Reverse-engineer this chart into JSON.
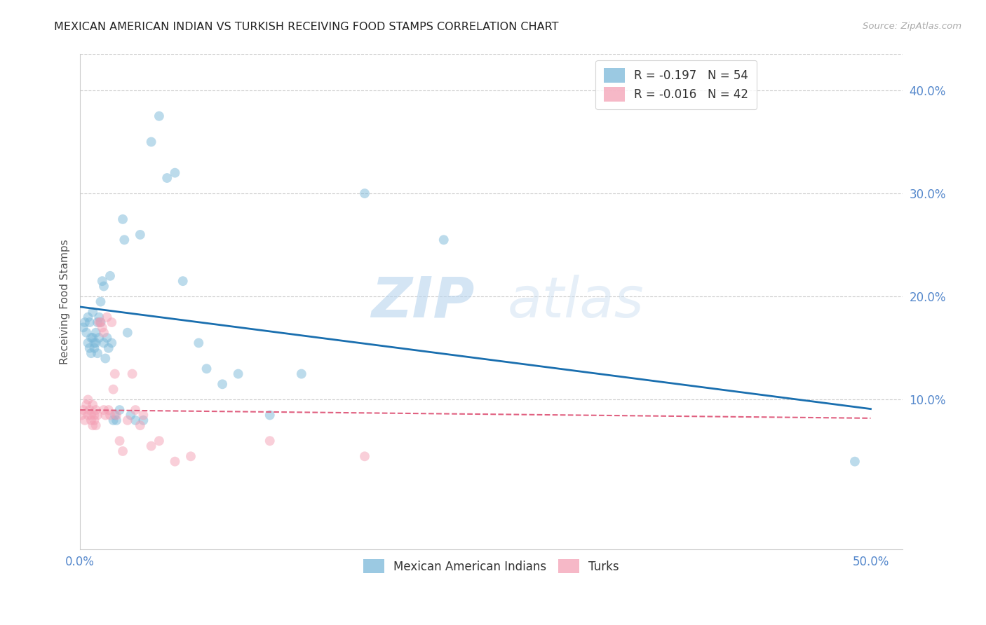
{
  "title": "MEXICAN AMERICAN INDIAN VS TURKISH RECEIVING FOOD STAMPS CORRELATION CHART",
  "source": "Source: ZipAtlas.com",
  "ylabel": "Receiving Food Stamps",
  "watermark_zip": "ZIP",
  "watermark_atlas": "atlas",
  "legend_blue_label": "R = -0.197   N = 54",
  "legend_pink_label": "R = -0.016   N = 42",
  "legend_bottom_blue": "Mexican American Indians",
  "legend_bottom_pink": "Turks",
  "xlim": [
    0.0,
    0.52
  ],
  "ylim": [
    -0.045,
    0.435
  ],
  "xtick_vals": [
    0.0,
    0.5
  ],
  "xtick_labels": [
    "0.0%",
    "50.0%"
  ],
  "ytick_vals": [
    0.1,
    0.2,
    0.3,
    0.4
  ],
  "ytick_labels": [
    "10.0%",
    "20.0%",
    "30.0%",
    "40.0%"
  ],
  "blue_scatter_x": [
    0.002,
    0.003,
    0.004,
    0.005,
    0.005,
    0.006,
    0.006,
    0.007,
    0.007,
    0.008,
    0.008,
    0.009,
    0.009,
    0.01,
    0.01,
    0.011,
    0.011,
    0.012,
    0.012,
    0.013,
    0.013,
    0.014,
    0.015,
    0.015,
    0.016,
    0.017,
    0.018,
    0.019,
    0.02,
    0.021,
    0.022,
    0.023,
    0.025,
    0.027,
    0.028,
    0.03,
    0.032,
    0.035,
    0.038,
    0.04,
    0.045,
    0.05,
    0.055,
    0.06,
    0.065,
    0.075,
    0.08,
    0.09,
    0.1,
    0.12,
    0.14,
    0.18,
    0.23,
    0.49
  ],
  "blue_scatter_y": [
    0.17,
    0.175,
    0.165,
    0.18,
    0.155,
    0.175,
    0.15,
    0.16,
    0.145,
    0.185,
    0.16,
    0.15,
    0.155,
    0.165,
    0.155,
    0.175,
    0.145,
    0.18,
    0.16,
    0.195,
    0.175,
    0.215,
    0.155,
    0.21,
    0.14,
    0.16,
    0.15,
    0.22,
    0.155,
    0.08,
    0.085,
    0.08,
    0.09,
    0.275,
    0.255,
    0.165,
    0.085,
    0.08,
    0.26,
    0.08,
    0.35,
    0.375,
    0.315,
    0.32,
    0.215,
    0.155,
    0.13,
    0.115,
    0.125,
    0.085,
    0.125,
    0.3,
    0.255,
    0.04
  ],
  "pink_scatter_x": [
    0.001,
    0.002,
    0.003,
    0.004,
    0.005,
    0.005,
    0.006,
    0.007,
    0.007,
    0.008,
    0.008,
    0.009,
    0.009,
    0.01,
    0.01,
    0.011,
    0.012,
    0.013,
    0.014,
    0.015,
    0.015,
    0.016,
    0.017,
    0.018,
    0.019,
    0.02,
    0.021,
    0.022,
    0.023,
    0.025,
    0.027,
    0.03,
    0.033,
    0.035,
    0.038,
    0.04,
    0.045,
    0.05,
    0.06,
    0.07,
    0.12,
    0.18
  ],
  "pink_scatter_y": [
    0.085,
    0.09,
    0.08,
    0.095,
    0.1,
    0.085,
    0.09,
    0.085,
    0.08,
    0.095,
    0.075,
    0.085,
    0.08,
    0.09,
    0.075,
    0.085,
    0.175,
    0.175,
    0.17,
    0.165,
    0.09,
    0.085,
    0.18,
    0.09,
    0.085,
    0.175,
    0.11,
    0.125,
    0.085,
    0.06,
    0.05,
    0.08,
    0.125,
    0.09,
    0.075,
    0.085,
    0.055,
    0.06,
    0.04,
    0.045,
    0.06,
    0.045
  ],
  "blue_line_x": [
    0.0,
    0.5
  ],
  "blue_line_y": [
    0.19,
    0.091
  ],
  "pink_line_x": [
    0.0,
    0.5
  ],
  "pink_line_y": [
    0.09,
    0.082
  ],
  "scatter_alpha": 0.5,
  "scatter_size": 100,
  "blue_color": "#7ab8d9",
  "pink_color": "#f4a0b5",
  "blue_line_color": "#1a6faf",
  "pink_line_color": "#e06080",
  "grid_color": "#cccccc",
  "title_color": "#222222",
  "axis_label_color": "#555555",
  "tick_color": "#5588cc",
  "background_color": "#ffffff"
}
